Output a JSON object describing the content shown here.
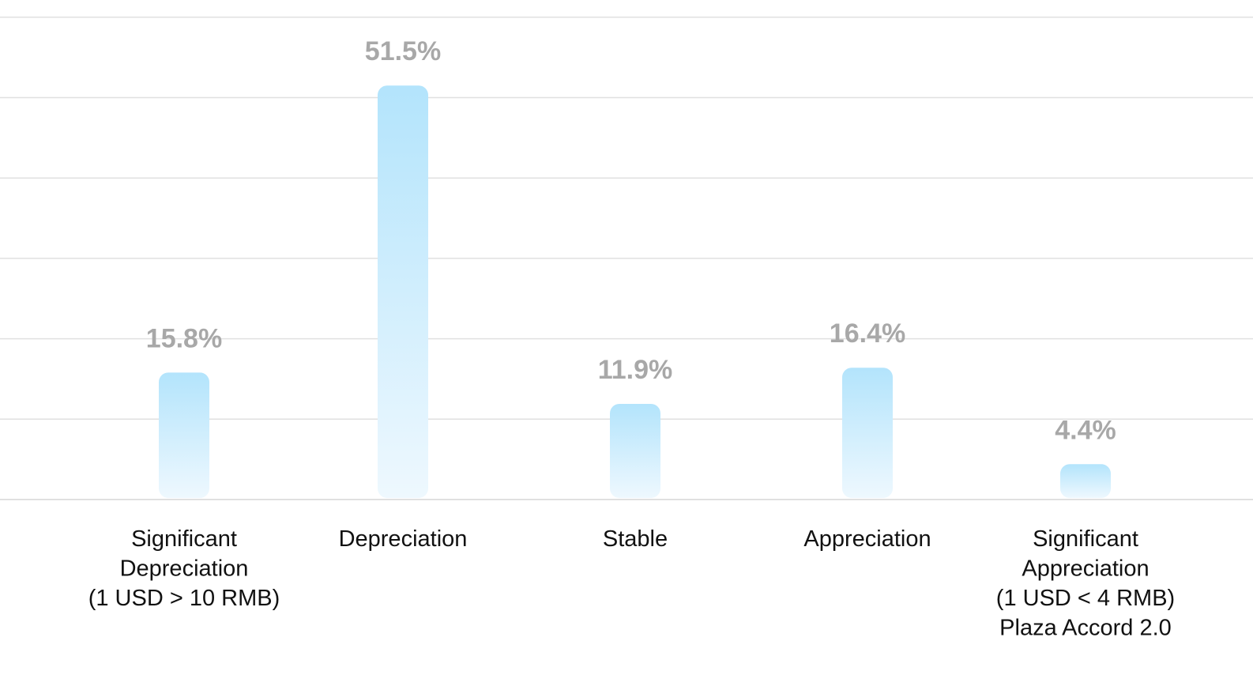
{
  "chart_data": {
    "type": "bar",
    "categories": [
      [
        "Significant",
        "Depreciation",
        "(1 USD > 10 RMB)"
      ],
      [
        "Depreciation"
      ],
      [
        "Stable"
      ],
      [
        "Appreciation"
      ],
      [
        "Significant",
        "Appreciation",
        "(1 USD < 4 RMB)",
        "Plaza Accord 2.0"
      ]
    ],
    "values": [
      15.8,
      51.5,
      11.9,
      16.4,
      4.4
    ],
    "value_labels": [
      "15.8%",
      "51.5%",
      "11.9%",
      "16.4%",
      "4.4%"
    ],
    "ylim": [
      0,
      60
    ],
    "grid": true,
    "legend": "none"
  },
  "colors": {
    "bar_top": "#b3e4fc",
    "bar_bottom": "#eef8fe",
    "grid": "#e0e0e0",
    "value_label": "#a8a8a8",
    "category_label": "#111111"
  }
}
